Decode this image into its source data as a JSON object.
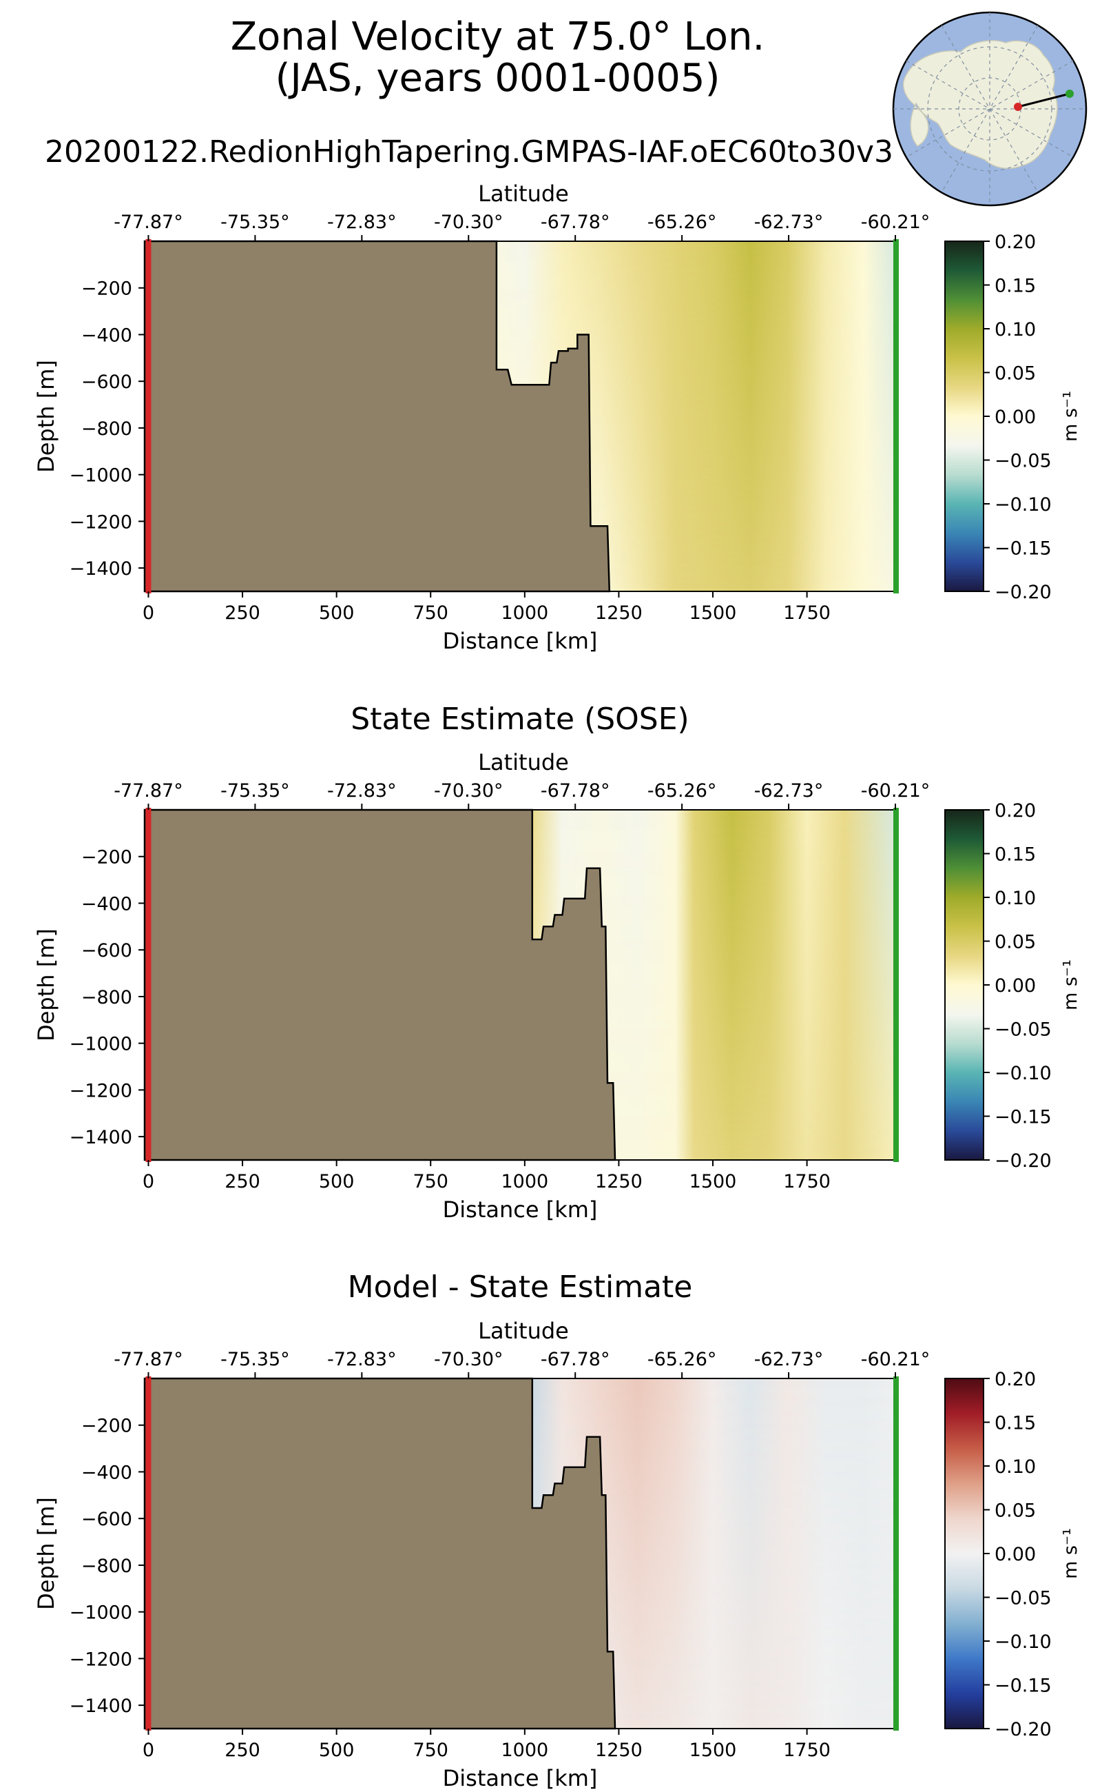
{
  "figure": {
    "title_line1": "Zonal Velocity at 75.0° Lon.",
    "title_line2": "(JAS, years 0001-0005)",
    "inset": "south-polar-map-with-transect"
  },
  "colors": {
    "land": "#8f8167",
    "section_start": "#d62728",
    "section_end": "#2ca02c",
    "cmap_velocity": [
      "#1a1840",
      "#2a4a9a",
      "#3a86b5",
      "#5ab5b3",
      "#b9dcd0",
      "#f4f6ee",
      "#fff9d2",
      "#e7d782",
      "#c9c148",
      "#9fab2a",
      "#4f8f36",
      "#1e5a36",
      "#172619"
    ],
    "cmap_diff": [
      "#1a1840",
      "#243f9f",
      "#3f79c8",
      "#83b0d0",
      "#c9d9e3",
      "#f2f2f2",
      "#efd6cc",
      "#df9f87",
      "#c65c47",
      "#a11d27",
      "#4f0b13"
    ]
  },
  "chart_data": [
    {
      "type": "heatmap",
      "title": "20200122.RedionHighTapering.GMPAS-IAF.oEC60to30v3",
      "top_xlabel": "Latitude",
      "top_ticks": [
        "-77.87°",
        "-75.35°",
        "-72.83°",
        "-70.30°",
        "-67.78°",
        "-65.26°",
        "-62.73°",
        "-60.21°"
      ],
      "xlabel": "Distance [km]",
      "ylabel": "Depth [m]",
      "xlim": [
        -10,
        1985
      ],
      "ylim": [
        -1500,
        0
      ],
      "xticks": [
        0,
        250,
        500,
        750,
        1000,
        1250,
        1500,
        1750
      ],
      "yticks": [
        -200,
        -400,
        -600,
        -800,
        -1000,
        -1200,
        -1400
      ],
      "colorbar": {
        "label": "m s⁻¹",
        "vmin": -0.2,
        "vmax": 0.2,
        "ticks": [
          0.2,
          0.15,
          0.1,
          0.05,
          0.0,
          -0.05,
          -0.1,
          -0.15,
          -0.2
        ],
        "tick_labels": [
          "0.20",
          "0.15",
          "0.10",
          "0.05",
          "0.00",
          "−0.05",
          "−0.10",
          "−0.15",
          "−0.20"
        ],
        "cmap": "velocity"
      },
      "land_boundary": [
        [
          -10,
          0
        ],
        [
          925,
          0
        ],
        [
          925,
          -550
        ],
        [
          955,
          -550
        ],
        [
          965,
          -615
        ],
        [
          1065,
          -615
        ],
        [
          1070,
          -520
        ],
        [
          1085,
          -520
        ],
        [
          1090,
          -470
        ],
        [
          1115,
          -470
        ],
        [
          1115,
          -460
        ],
        [
          1140,
          -460
        ],
        [
          1140,
          -400
        ],
        [
          1170,
          -400
        ],
        [
          1175,
          -1220
        ],
        [
          1220,
          -1220
        ],
        [
          1225,
          -1500
        ],
        [
          -10,
          -1500
        ]
      ],
      "velocity_columns": [
        {
          "x": 925,
          "top": -0.02,
          "bottom": 0.0
        },
        {
          "x": 1000,
          "top": -0.03,
          "bottom": 0.0
        },
        {
          "x": 1100,
          "top": 0.01,
          "bottom": -0.005
        },
        {
          "x": 1200,
          "top": 0.02,
          "bottom": -0.01
        },
        {
          "x": 1300,
          "top": 0.03,
          "bottom": 0.015
        },
        {
          "x": 1400,
          "top": 0.04,
          "bottom": 0.035
        },
        {
          "x": 1500,
          "top": 0.05,
          "bottom": 0.04
        },
        {
          "x": 1600,
          "top": 0.07,
          "bottom": 0.045
        },
        {
          "x": 1700,
          "top": 0.05,
          "bottom": 0.035
        },
        {
          "x": 1800,
          "top": 0.015,
          "bottom": 0.01
        },
        {
          "x": 1900,
          "top": -0.005,
          "bottom": -0.005
        },
        {
          "x": 1985,
          "top": -0.05,
          "bottom": -0.02
        }
      ]
    },
    {
      "type": "heatmap",
      "title": "State Estimate (SOSE)",
      "top_xlabel": "Latitude",
      "top_ticks": [
        "-77.87°",
        "-75.35°",
        "-72.83°",
        "-70.30°",
        "-67.78°",
        "-65.26°",
        "-62.73°",
        "-60.21°"
      ],
      "xlabel": "Distance [km]",
      "ylabel": "Depth [m]",
      "xlim": [
        -10,
        1985
      ],
      "ylim": [
        -1500,
        0
      ],
      "xticks": [
        0,
        250,
        500,
        750,
        1000,
        1250,
        1500,
        1750
      ],
      "yticks": [
        -200,
        -400,
        -600,
        -800,
        -1000,
        -1200,
        -1400
      ],
      "colorbar": {
        "label": "m s⁻¹",
        "vmin": -0.2,
        "vmax": 0.2,
        "ticks": [
          0.2,
          0.15,
          0.1,
          0.05,
          0.0,
          -0.05,
          -0.1,
          -0.15,
          -0.2
        ],
        "tick_labels": [
          "0.20",
          "0.15",
          "0.10",
          "0.05",
          "0.00",
          "−0.05",
          "−0.10",
          "−0.15",
          "−0.20"
        ],
        "cmap": "velocity"
      },
      "land_boundary": [
        [
          -10,
          0
        ],
        [
          1020,
          0
        ],
        [
          1020,
          -555
        ],
        [
          1045,
          -555
        ],
        [
          1050,
          -500
        ],
        [
          1075,
          -500
        ],
        [
          1080,
          -450
        ],
        [
          1100,
          -450
        ],
        [
          1105,
          -380
        ],
        [
          1160,
          -380
        ],
        [
          1165,
          -250
        ],
        [
          1200,
          -250
        ],
        [
          1205,
          -500
        ],
        [
          1215,
          -500
        ],
        [
          1220,
          -1170
        ],
        [
          1235,
          -1170
        ],
        [
          1240,
          -1500
        ],
        [
          -10,
          -1500
        ]
      ],
      "velocity_columns": [
        {
          "x": 1020,
          "top": 0.03,
          "bottom": 0.0
        },
        {
          "x": 1100,
          "top": -0.03,
          "bottom": -0.01
        },
        {
          "x": 1200,
          "top": -0.02,
          "bottom": -0.015
        },
        {
          "x": 1300,
          "top": -0.03,
          "bottom": -0.015
        },
        {
          "x": 1400,
          "top": -0.01,
          "bottom": -0.01
        },
        {
          "x": 1450,
          "top": 0.04,
          "bottom": 0.03
        },
        {
          "x": 1550,
          "top": 0.07,
          "bottom": 0.04
        },
        {
          "x": 1650,
          "top": 0.05,
          "bottom": 0.035
        },
        {
          "x": 1750,
          "top": 0.01,
          "bottom": 0.02
        },
        {
          "x": 1850,
          "top": 0.03,
          "bottom": 0.03
        },
        {
          "x": 1985,
          "top": -0.05,
          "bottom": 0.01
        }
      ]
    },
    {
      "type": "heatmap",
      "title": "Model - State Estimate",
      "top_xlabel": "Latitude",
      "top_ticks": [
        "-77.87°",
        "-75.35°",
        "-72.83°",
        "-70.30°",
        "-67.78°",
        "-65.26°",
        "-62.73°",
        "-60.21°"
      ],
      "xlabel": "Distance [km]",
      "ylabel": "Depth [m]",
      "xlim": [
        -10,
        1985
      ],
      "ylim": [
        -1500,
        0
      ],
      "xticks": [
        0,
        250,
        500,
        750,
        1000,
        1250,
        1500,
        1750
      ],
      "yticks": [
        -200,
        -400,
        -600,
        -800,
        -1000,
        -1200,
        -1400
      ],
      "colorbar": {
        "label": "m s⁻¹",
        "vmin": -0.2,
        "vmax": 0.2,
        "ticks": [
          0.2,
          0.15,
          0.1,
          0.05,
          0.0,
          -0.05,
          -0.1,
          -0.15,
          -0.2
        ],
        "tick_labels": [
          "0.20",
          "0.15",
          "0.10",
          "0.05",
          "0.00",
          "−0.05",
          "−0.10",
          "−0.15",
          "−0.20"
        ],
        "cmap": "diff"
      },
      "land_boundary": [
        [
          -10,
          0
        ],
        [
          1020,
          0
        ],
        [
          1020,
          -555
        ],
        [
          1045,
          -555
        ],
        [
          1050,
          -500
        ],
        [
          1075,
          -500
        ],
        [
          1080,
          -450
        ],
        [
          1100,
          -450
        ],
        [
          1105,
          -380
        ],
        [
          1160,
          -380
        ],
        [
          1165,
          -250
        ],
        [
          1200,
          -250
        ],
        [
          1205,
          -500
        ],
        [
          1215,
          -500
        ],
        [
          1220,
          -1170
        ],
        [
          1235,
          -1170
        ],
        [
          1240,
          -1500
        ],
        [
          -10,
          -1500
        ]
      ],
      "velocity_columns": [
        {
          "x": 1020,
          "top": -0.04,
          "bottom": -0.01
        },
        {
          "x": 1100,
          "top": 0.02,
          "bottom": 0.005
        },
        {
          "x": 1200,
          "top": 0.04,
          "bottom": 0.01
        },
        {
          "x": 1300,
          "top": 0.05,
          "bottom": 0.02
        },
        {
          "x": 1400,
          "top": 0.04,
          "bottom": 0.015
        },
        {
          "x": 1500,
          "top": 0.01,
          "bottom": 0.005
        },
        {
          "x": 1600,
          "top": -0.02,
          "bottom": 0.015
        },
        {
          "x": 1700,
          "top": 0.015,
          "bottom": 0.01
        },
        {
          "x": 1800,
          "top": -0.01,
          "bottom": 0.0
        },
        {
          "x": 1900,
          "top": -0.01,
          "bottom": -0.005
        },
        {
          "x": 1985,
          "top": -0.005,
          "bottom": -0.005
        }
      ]
    }
  ]
}
